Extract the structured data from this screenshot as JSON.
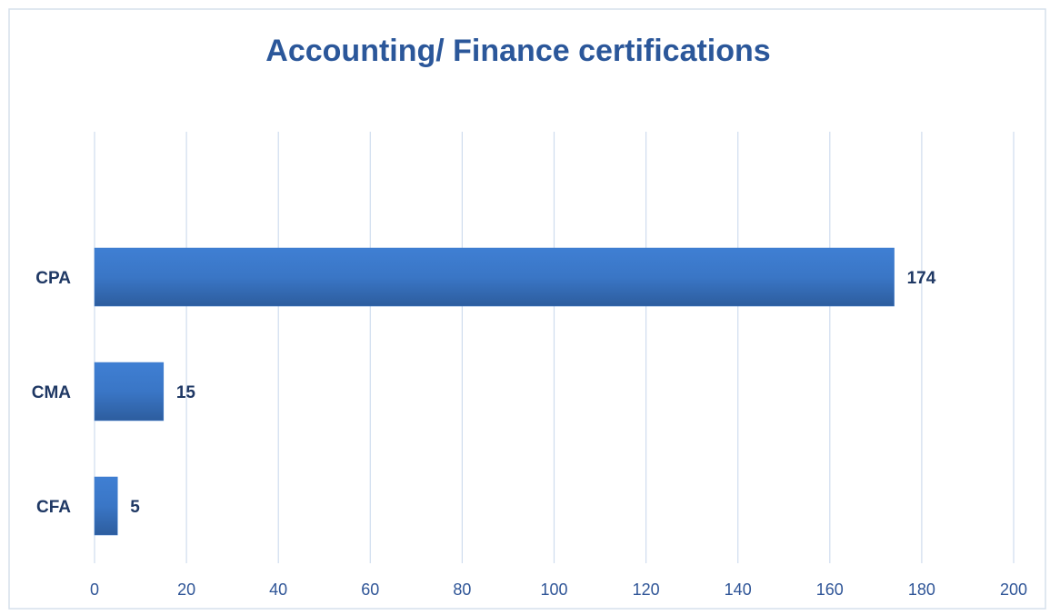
{
  "chart_data": {
    "type": "bar",
    "orientation": "horizontal",
    "title": "Accounting/ Finance certifications",
    "categories": [
      "CPA",
      "CMA",
      "CFA"
    ],
    "values": [
      174,
      15,
      5
    ],
    "color": "#3b78c9",
    "xlim": [
      0,
      200
    ],
    "xticks": [
      0,
      20,
      40,
      60,
      80,
      100,
      120,
      140,
      160,
      180,
      200
    ],
    "grid": true
  }
}
